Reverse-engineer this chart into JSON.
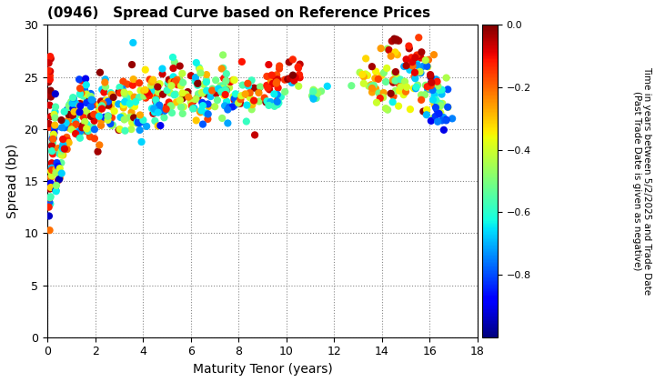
{
  "title": "(0946)   Spread Curve based on Reference Prices",
  "xlabel": "Maturity Tenor (years)",
  "ylabel": "Spread (bp)",
  "colorbar_label": "Time in years between 5/2/2025 and Trade Date\n(Past Trade Date is given as negative)",
  "xlim": [
    0,
    18
  ],
  "ylim": [
    0,
    30
  ],
  "xticks": [
    0,
    2,
    4,
    6,
    8,
    10,
    12,
    14,
    16,
    18
  ],
  "yticks": [
    0,
    5,
    10,
    15,
    20,
    25,
    30
  ],
  "cmap": "jet",
  "clim": [
    -1.0,
    0.0
  ],
  "cticks": [
    0.0,
    -0.2,
    -0.4,
    -0.6,
    -0.8
  ],
  "dot_size": 35,
  "background_color": "#ffffff",
  "grid_color": "#888888",
  "grid_style": ":"
}
